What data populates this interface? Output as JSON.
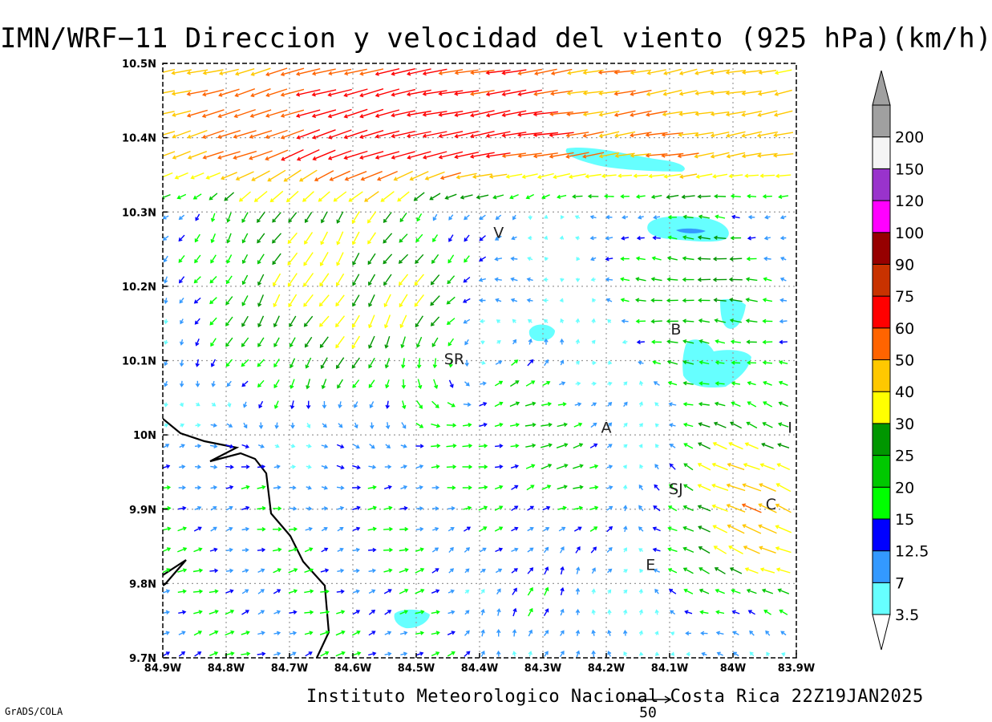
{
  "title": "IMN/WRF−11 Direccion y velocidad del viento (925 hPa)(km/h)",
  "credit": "Instituto Meteorologico Nacional Costa Rica 22Z19JAN2025",
  "software": "GrADS/COLA",
  "reference_vector": {
    "label": "50",
    "value": 50
  },
  "axes": {
    "lon_range": [
      -84.9,
      -83.9
    ],
    "lat_range": [
      9.7,
      10.5
    ],
    "x_ticks": [
      "84.9W",
      "84.8W",
      "84.7W",
      "84.6W",
      "84.5W",
      "84.4W",
      "84.3W",
      "84.2W",
      "84.1W",
      "84W",
      "83.9W"
    ],
    "y_ticks": [
      "9.7N",
      "9.8N",
      "9.9N",
      "10N",
      "10.1N",
      "10.2N",
      "10.3N",
      "10.4N",
      "10.5N"
    ],
    "grid": "dotted"
  },
  "colorbar": {
    "levels": [
      "3.5",
      "7",
      "12.5",
      "15",
      "20",
      "25",
      "30",
      "40",
      "50",
      "60",
      "75",
      "90",
      "100",
      "120",
      "150",
      "200"
    ],
    "colors": [
      "#66ffff",
      "#3399ff",
      "#0000ff",
      "#00ff00",
      "#00c800",
      "#009600",
      "#ffff00",
      "#ffc800",
      "#ff6400",
      "#ff0000",
      "#c83200",
      "#960000",
      "#ff00ff",
      "#9933cc",
      "#f5f5f5",
      "#a0a0a0"
    ]
  },
  "places": [
    {
      "label": "V",
      "lon": -84.37,
      "lat": 10.265
    },
    {
      "label": "SR",
      "lon": -84.44,
      "lat": 10.095
    },
    {
      "label": "B",
      "lon": -84.09,
      "lat": 10.135
    },
    {
      "label": "A",
      "lon": -84.2,
      "lat": 10.003
    },
    {
      "label": "I",
      "lon": -83.91,
      "lat": 10.003
    },
    {
      "label": "SJ",
      "lon": -84.09,
      "lat": 9.92
    },
    {
      "label": "C",
      "lon": -83.94,
      "lat": 9.9
    },
    {
      "label": "E",
      "lon": -84.13,
      "lat": 9.818
    }
  ],
  "chart_data": {
    "type": "vector_field",
    "variable": "wind direction and speed at 925 hPa",
    "units": "km/h",
    "regions": [
      {
        "area": "north band 10.3N-10.5N",
        "direction": "from east (westward flow)",
        "speed_kmh": "30-100"
      },
      {
        "area": "northwest 10.15N-10.35N, 84.9W-84.45W",
        "direction": "from northeast",
        "speed_kmh": "15-40"
      },
      {
        "area": "southwest 9.7N-10.05N, 84.9W-84.55W",
        "direction": "from southwest (northeastward flow)",
        "speed_kmh": "3.5-15"
      },
      {
        "area": "center 9.9N-10.05N, 84.45W-84.15W",
        "direction": "from west-southwest",
        "speed_kmh": "15-25"
      },
      {
        "area": "southeast 9.8N-10.0N, 84.1W-83.9W",
        "direction": "from east-northeast",
        "speed_kmh": "20-50"
      },
      {
        "area": "east 10.1N-10.3N, 84.2W-83.9W",
        "direction": "from east",
        "speed_kmh": "7-40"
      }
    ],
    "calm_areas_below_3_5_kmh": [
      {
        "lon": -84.17,
        "lat": 10.38
      },
      {
        "lon": -84.06,
        "lat": 10.278
      },
      {
        "lon": -84.05,
        "lat": 10.105
      },
      {
        "lon": -83.98,
        "lat": 10.165
      },
      {
        "lon": -84.28,
        "lat": 10.14
      },
      {
        "lon": -84.49,
        "lat": 9.755
      }
    ]
  }
}
